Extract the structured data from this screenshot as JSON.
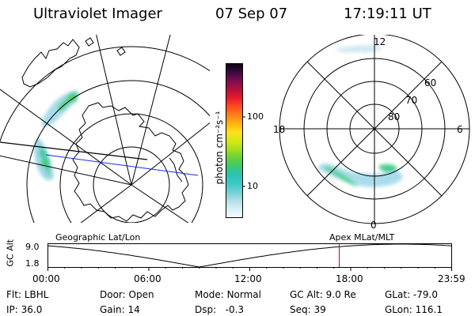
{
  "header": {
    "title": "Ultraviolet Imager",
    "date": "07 Sep 07",
    "time": "17:19:11 UT"
  },
  "colorbar": {
    "unit_label": "photon cm⁻²s⁻¹",
    "ticks": [
      "100",
      "10"
    ]
  },
  "right_plot": {
    "mlt_labels": {
      "top": "12",
      "bottom": "0",
      "left": "18",
      "right": "6"
    },
    "lat_labels": [
      "60",
      "70",
      "80"
    ]
  },
  "timeline": {
    "left_label": "Geographic Lat/Lon",
    "right_label": "Apex MLat/MLT",
    "y_title": "GC Alt",
    "y_ticks": [
      "9.0",
      "1.8"
    ],
    "x_ticks": [
      "00:00",
      "06:00",
      "12:00",
      "18:00",
      "23:59"
    ],
    "marker_time_hours": 17.32
  },
  "info": {
    "row1": [
      {
        "label": "Flt:",
        "value": "LBHL"
      },
      {
        "label": "Door:",
        "value": "Open"
      },
      {
        "label": "Mode:",
        "value": "Normal"
      },
      {
        "label": "GC Alt:",
        "value": "9.0 Re"
      },
      {
        "label": "GLat:",
        "value": "-79.0"
      }
    ],
    "row2": [
      {
        "label": "IP:",
        "value": "36.0"
      },
      {
        "label": "Gain:",
        "value": "14"
      },
      {
        "label": "Dsp:",
        "value": "  -0.3"
      },
      {
        "label": "Seq:",
        "value": "39"
      },
      {
        "label": "GLon:",
        "value": "116.1"
      }
    ]
  },
  "colors": {
    "colorbar": [
      "#f6fbff",
      "#d8eef6",
      "#b0dde6",
      "#6fd0d6",
      "#38c9c6",
      "#2cc2b6",
      "#3cc86e",
      "#69d238",
      "#a7de1e",
      "#d9e812",
      "#ffe01a",
      "#ffb40e",
      "#ff7e1a",
      "#ff4a1e",
      "#e6192c",
      "#b21238",
      "#7e0c52",
      "#3c0a3e",
      "#0a0616"
    ],
    "marker": "#cc0000",
    "track": "#1a2ee0"
  }
}
